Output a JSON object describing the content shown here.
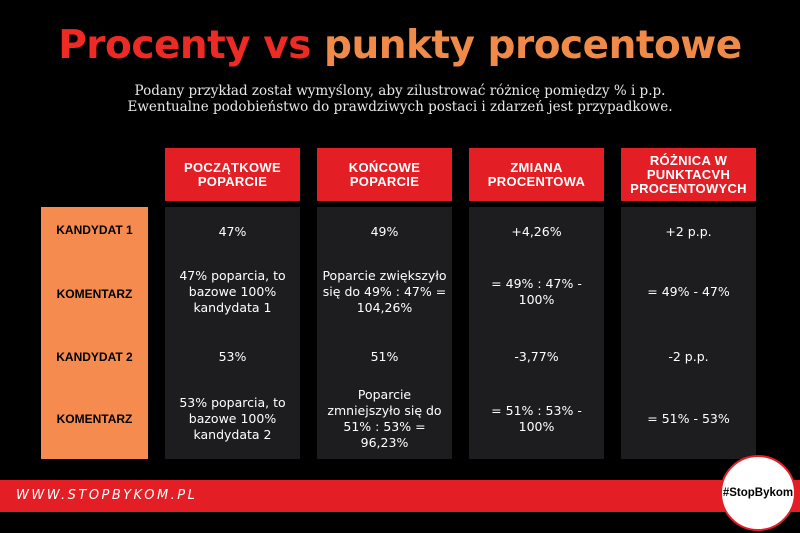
{
  "title": {
    "part1": "Procenty vs",
    "part2": "punkty procentowe"
  },
  "subtitle": {
    "line1": "Podany przykład został wymyślony, aby zilustrować różnicę pomiędzy % i p.p.",
    "line2": "Ewentualne podobieństwo do prawdziwych postaci i zdarzeń jest przypadkowe."
  },
  "headers": {
    "col1": "POCZĄTKOWE POPARCIE",
    "col2": "KOŃCOWE POPARCIE",
    "col3": "ZMIANA PROCENTOWA",
    "col4": "RÓŻNICA W PUNKTACVH PROCENTOWYCH"
  },
  "row_labels": {
    "r1": "KANDYDAT 1",
    "r2": "KOMENTARZ",
    "r3": "KANDYDAT 2",
    "r4": "KOMENTARZ"
  },
  "cells": {
    "c1r1": "47%",
    "c1r2": "47% poparcia, to bazowe 100% kandydata 1",
    "c1r3": "53%",
    "c1r4": "53% poparcia, to bazowe 100% kandydata 2",
    "c2r1": "49%",
    "c2r2": "Poparcie zwiększyło się do 49% : 47% = 104,26%",
    "c2r3": "51%",
    "c2r4": "Poparcie zmniejszyło się do 51% : 53% = 96,23%",
    "c3r1": "+4,26%",
    "c3r2": "= 49% : 47% - 100%",
    "c3r3": "-3,77%",
    "c3r4": "= 51% : 53% - 100%",
    "c4r1": "+2 p.p.",
    "c4r2": "= 49% - 47%",
    "c4r3": "-2 p.p.",
    "c4r4": "= 51% - 53%"
  },
  "footer": {
    "website": "WWW.STOPBYKOM.PL",
    "hashtag": "#StopBykom"
  },
  "colors": {
    "red": "#e31e24",
    "orange": "#f68b4f",
    "title_orange": "#f08a48",
    "cell_bg": "#1d1d1f",
    "background": "#000000"
  }
}
